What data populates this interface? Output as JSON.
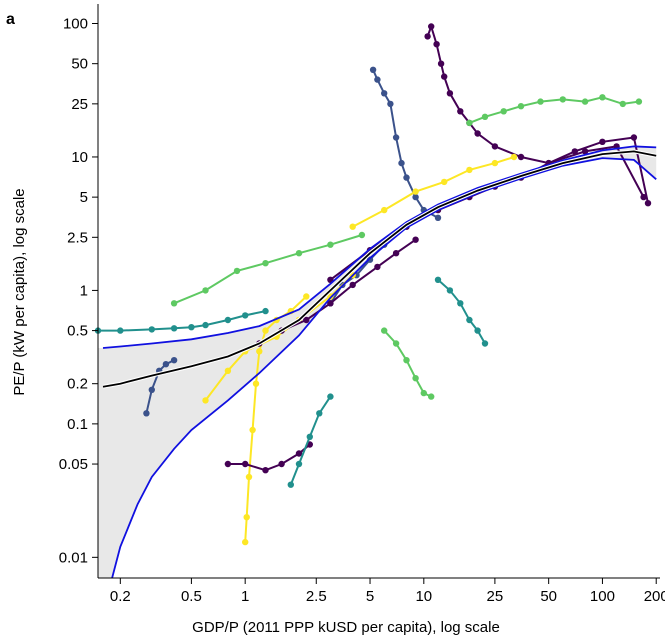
{
  "chart_data": {
    "type": "scatter",
    "panel_label": "a",
    "xlabel": "GDP/P (2011 PPP kUSD per capita), log scale",
    "ylabel": "PE/P (kW per capita), log scale",
    "x_scale": "log",
    "y_scale": "log",
    "xlim": [
      0.15,
      210
    ],
    "ylim": [
      0.007,
      140
    ],
    "x_ticks": [
      0.2,
      0.5,
      1,
      2.5,
      5,
      10,
      25,
      50,
      100,
      200
    ],
    "x_tick_labels": [
      "0.2",
      "0.5",
      "1",
      "2.5",
      "5",
      "10",
      "25",
      "50",
      "100",
      "200"
    ],
    "y_ticks": [
      0.01,
      0.05,
      0.1,
      0.2,
      0.5,
      1,
      2.5,
      5,
      10,
      25,
      50,
      100
    ],
    "y_tick_labels": [
      "0.01",
      "0.05",
      "0.1",
      "0.2",
      "0.5",
      "1",
      "2.5",
      "5",
      "10",
      "25",
      "50",
      "100"
    ],
    "grid": false,
    "colors": {
      "fit_line": "#000000",
      "confidence_band": "#1010e0",
      "band_fill": "#e8e8e8",
      "country_palette": [
        "#440154",
        "#3b528b",
        "#21908d",
        "#5ec962",
        "#fde725"
      ]
    },
    "fit": {
      "x": [
        0.16,
        0.2,
        0.3,
        0.5,
        0.8,
        1.2,
        2,
        3,
        5,
        8,
        12,
        20,
        35,
        60,
        100,
        150,
        200
      ],
      "y": [
        0.19,
        0.2,
        0.23,
        0.27,
        0.32,
        0.4,
        0.6,
        1.0,
        1.9,
        3.1,
        4.2,
        5.6,
        7.2,
        9.0,
        10.5,
        11.0,
        10.2
      ]
    },
    "band_upper": {
      "x": [
        0.16,
        0.2,
        0.3,
        0.5,
        0.8,
        1.2,
        2,
        3,
        5,
        8,
        12,
        20,
        35,
        60,
        100,
        150,
        200
      ],
      "y": [
        0.37,
        0.38,
        0.4,
        0.43,
        0.48,
        0.54,
        0.72,
        1.12,
        2.05,
        3.25,
        4.4,
        5.85,
        7.5,
        9.4,
        11.2,
        12.0,
        11.8
      ]
    },
    "band_lower": {
      "x": [
        0.18,
        0.2,
        0.25,
        0.3,
        0.4,
        0.5,
        0.8,
        1.2,
        2,
        3,
        5,
        8,
        12,
        20,
        35,
        60,
        100,
        150,
        200
      ],
      "y": [
        0.007,
        0.012,
        0.025,
        0.04,
        0.065,
        0.09,
        0.15,
        0.24,
        0.46,
        0.88,
        1.75,
        2.95,
        4.0,
        5.35,
        6.9,
        8.6,
        9.8,
        9.5,
        6.8
      ]
    },
    "series": [
      {
        "color": "#440154",
        "x": [
          10.5,
          11,
          11.8,
          12.5,
          13,
          14,
          16,
          18,
          20,
          25,
          35,
          50,
          80,
          120,
          170
        ],
        "y": [
          80,
          95,
          70,
          50,
          40,
          30,
          22,
          18,
          15,
          12,
          10,
          9,
          11,
          12,
          5
        ]
      },
      {
        "color": "#3b528b",
        "x": [
          5.2,
          5.5,
          6.0,
          6.5,
          7.0,
          7.5,
          8.0,
          9.0,
          10.0,
          12.0
        ],
        "y": [
          45,
          38,
          30,
          25,
          14,
          9,
          7,
          5,
          4,
          3.5
        ]
      },
      {
        "color": "#5ec962",
        "x": [
          18,
          22,
          28,
          35,
          45,
          60,
          80,
          100,
          130,
          160
        ],
        "y": [
          18,
          20,
          22,
          24,
          26,
          27,
          26,
          28,
          25,
          26
        ]
      },
      {
        "color": "#21908d",
        "x": [
          0.15,
          0.2,
          0.3,
          0.4,
          0.5,
          0.6,
          0.8,
          1.0,
          1.3
        ],
        "y": [
          0.5,
          0.5,
          0.51,
          0.52,
          0.53,
          0.55,
          0.6,
          0.65,
          0.7
        ]
      },
      {
        "color": "#fde725",
        "x": [
          1.0,
          1.02,
          1.05,
          1.1,
          1.15,
          1.2,
          1.3,
          1.5,
          1.8,
          2.2
        ],
        "y": [
          0.013,
          0.02,
          0.04,
          0.09,
          0.2,
          0.35,
          0.5,
          0.6,
          0.7,
          0.9
        ]
      },
      {
        "color": "#440154",
        "x": [
          0.8,
          1.0,
          1.3,
          1.6,
          2.0,
          2.3
        ],
        "y": [
          0.05,
          0.05,
          0.045,
          0.05,
          0.06,
          0.07
        ]
      },
      {
        "color": "#3b528b",
        "x": [
          0.28,
          0.3,
          0.33,
          0.36,
          0.4
        ],
        "y": [
          0.12,
          0.18,
          0.25,
          0.28,
          0.3
        ]
      },
      {
        "color": "#21908d",
        "x": [
          1.8,
          2.0,
          2.3,
          2.6,
          3.0
        ],
        "y": [
          0.035,
          0.05,
          0.08,
          0.12,
          0.16
        ]
      },
      {
        "color": "#5ec962",
        "x": [
          6,
          7,
          8,
          9,
          10,
          11
        ],
        "y": [
          0.5,
          0.4,
          0.3,
          0.22,
          0.17,
          0.16
        ]
      },
      {
        "color": "#fde725",
        "x": [
          4,
          6,
          9,
          13,
          18,
          25,
          32
        ],
        "y": [
          3,
          4,
          5.5,
          6.5,
          8,
          9,
          10
        ]
      },
      {
        "color": "#440154",
        "x": [
          3,
          5,
          8,
          12,
          18,
          25,
          35,
          50,
          70,
          100,
          150,
          180
        ],
        "y": [
          1.2,
          2,
          3,
          4,
          5,
          6,
          7,
          9,
          11,
          13,
          14,
          4.5
        ]
      },
      {
        "color": "#21908d",
        "x": [
          12,
          14,
          16,
          18,
          20,
          22
        ],
        "y": [
          1.2,
          1.0,
          0.8,
          0.6,
          0.5,
          0.4
        ]
      },
      {
        "color": "#5ec962",
        "x": [
          0.4,
          0.6,
          0.9,
          1.3,
          2,
          3,
          4.5
        ],
        "y": [
          0.8,
          1.0,
          1.4,
          1.6,
          1.9,
          2.2,
          2.6
        ]
      },
      {
        "color": "#3b528b",
        "x": [
          3,
          3.5,
          4.2,
          5.0,
          6.0
        ],
        "y": [
          0.8,
          1.1,
          1.3,
          1.7,
          2.2
        ]
      },
      {
        "color": "#fde725",
        "x": [
          0.6,
          0.8,
          1.0,
          1.5,
          2.0,
          3.0,
          4.0
        ],
        "y": [
          0.15,
          0.25,
          0.35,
          0.45,
          0.6,
          0.9,
          1.3
        ]
      },
      {
        "color": "#440154",
        "x": [
          1.2,
          1.6,
          2.2,
          3.0,
          4.0,
          5.5,
          7.0,
          9.0
        ],
        "y": [
          0.4,
          0.5,
          0.6,
          0.8,
          1.1,
          1.5,
          1.9,
          2.4
        ]
      }
    ]
  }
}
